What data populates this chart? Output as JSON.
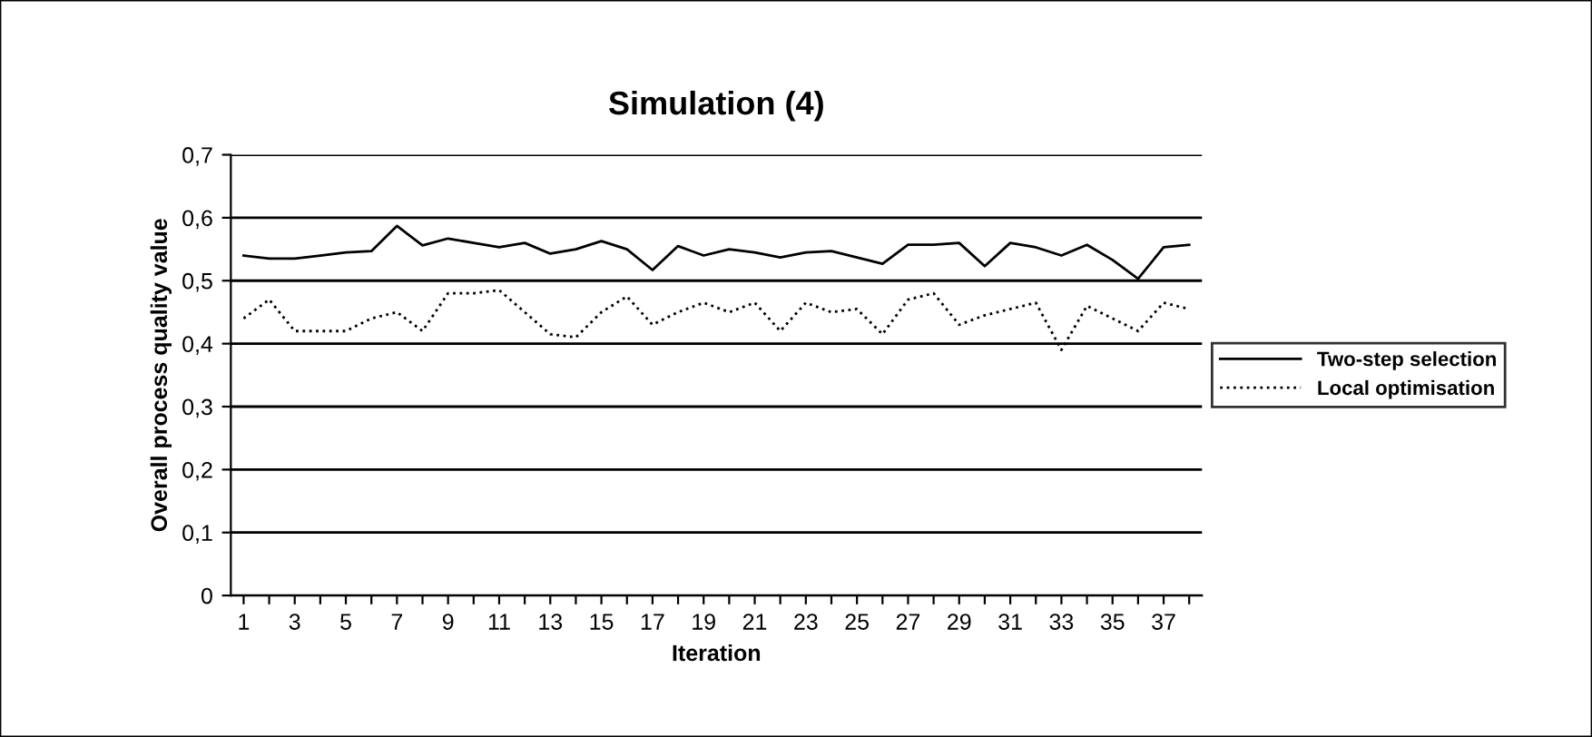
{
  "chart_data": {
    "type": "line",
    "title": "Simulation (4)",
    "xlabel": "Iteration",
    "ylabel": "Overall process quality value",
    "categories": [
      "1",
      null,
      "3",
      null,
      "5",
      null,
      "7",
      null,
      "9",
      null,
      "11",
      null,
      "13",
      null,
      "15",
      null,
      "17",
      null,
      "19",
      null,
      "21",
      null,
      "23",
      null,
      "25",
      null,
      "27",
      null,
      "29",
      null,
      "31",
      null,
      "33",
      null,
      "35",
      null,
      "37",
      null
    ],
    "series": [
      {
        "name": "Two-step selection",
        "color": "#000000",
        "line_style": "solid",
        "values": [
          0.54,
          0.535,
          0.535,
          0.54,
          0.545,
          0.547,
          0.587,
          0.556,
          0.567,
          0.56,
          0.553,
          0.56,
          0.543,
          0.55,
          0.563,
          0.55,
          0.517,
          0.555,
          0.54,
          0.55,
          0.545,
          0.537,
          0.545,
          0.547,
          0.537,
          0.527,
          0.557,
          0.557,
          0.56,
          0.523,
          0.56,
          0.553,
          0.54,
          0.557,
          0.533,
          0.503,
          0.553,
          0.557
        ]
      },
      {
        "name": "Local optimisation",
        "color": "#000000",
        "line_style": "dotted",
        "values": [
          0.44,
          0.47,
          0.42,
          0.42,
          0.42,
          0.44,
          0.45,
          0.42,
          0.48,
          0.48,
          0.485,
          0.45,
          0.415,
          0.41,
          0.45,
          0.475,
          0.43,
          0.45,
          0.465,
          0.45,
          0.465,
          0.42,
          0.465,
          0.45,
          0.455,
          0.415,
          0.47,
          0.48,
          0.43,
          0.445,
          0.455,
          0.465,
          0.39,
          0.46,
          0.44,
          0.42,
          0.465,
          0.455
        ]
      }
    ],
    "ylim": [
      0,
      0.7
    ],
    "yticks": [
      {
        "value": 0,
        "label": "0"
      },
      {
        "value": 0.1,
        "label": "0,1"
      },
      {
        "value": 0.2,
        "label": "0,2"
      },
      {
        "value": 0.3,
        "label": "0,3"
      },
      {
        "value": 0.4,
        "label": "0,4"
      },
      {
        "value": 0.5,
        "label": "0,5"
      },
      {
        "value": 0.6,
        "label": "0,6"
      },
      {
        "value": 0.7,
        "label": "0,7"
      }
    ],
    "grid": "y",
    "legend": "right",
    "marker": "none"
  }
}
